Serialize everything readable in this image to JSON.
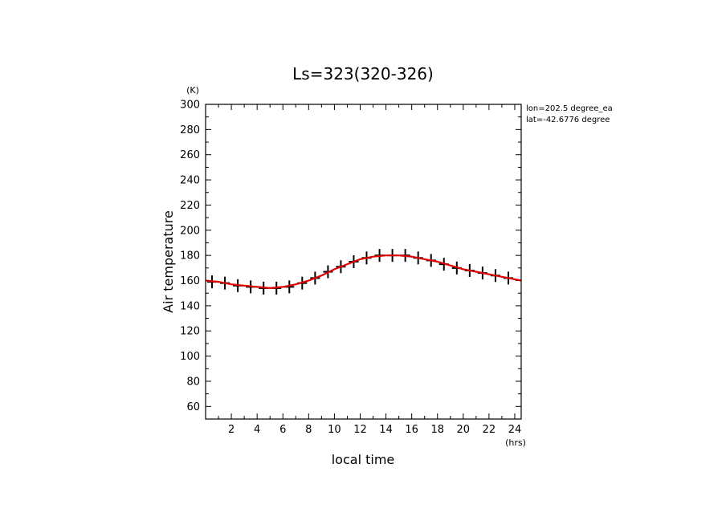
{
  "chart_data": {
    "type": "line",
    "title": "Ls=323(320-326)",
    "xlabel": "local time",
    "ylabel": "Air temperature",
    "x_unit": "(hrs)",
    "y_unit": "(K)",
    "xlim": [
      0,
      24.5
    ],
    "ylim": [
      50,
      300
    ],
    "x_ticks": [
      2,
      4,
      6,
      8,
      10,
      12,
      14,
      16,
      18,
      20,
      22,
      24
    ],
    "y_ticks": [
      60,
      80,
      100,
      120,
      140,
      160,
      180,
      200,
      220,
      240,
      260,
      280,
      300
    ],
    "annotations": [
      "lon=202.5 degree_ea",
      "lat=-42.6776 degree"
    ],
    "series": [
      {
        "style": "markers",
        "color": "#000000",
        "x": [
          0.5,
          1.5,
          2.5,
          3.5,
          4.5,
          5.5,
          6.5,
          7.5,
          8.5,
          9.5,
          10.5,
          11.5,
          12.5,
          13.5,
          14.5,
          15.5,
          16.5,
          17.5,
          18.5,
          19.5,
          20.5,
          21.5,
          22.5,
          23.5
        ],
        "y": [
          159,
          158,
          156,
          155,
          154,
          154,
          155,
          158,
          162,
          167,
          171,
          175,
          178,
          180,
          180,
          180,
          178,
          176,
          173,
          170,
          168,
          166,
          164,
          162
        ]
      },
      {
        "style": "line",
        "color": "#e00000",
        "x": [
          0,
          1,
          2,
          3,
          4,
          5,
          6,
          7,
          8,
          9,
          10,
          11,
          12,
          13,
          14,
          15,
          16,
          17,
          18,
          19,
          20,
          21,
          22,
          23,
          24,
          24.5
        ],
        "y": [
          160,
          159,
          157,
          156,
          155,
          154,
          155,
          157,
          160,
          164,
          169,
          173,
          177,
          179,
          180,
          180,
          179,
          177,
          175,
          172,
          169,
          167,
          165,
          163,
          161,
          160
        ]
      }
    ],
    "grid": false
  }
}
